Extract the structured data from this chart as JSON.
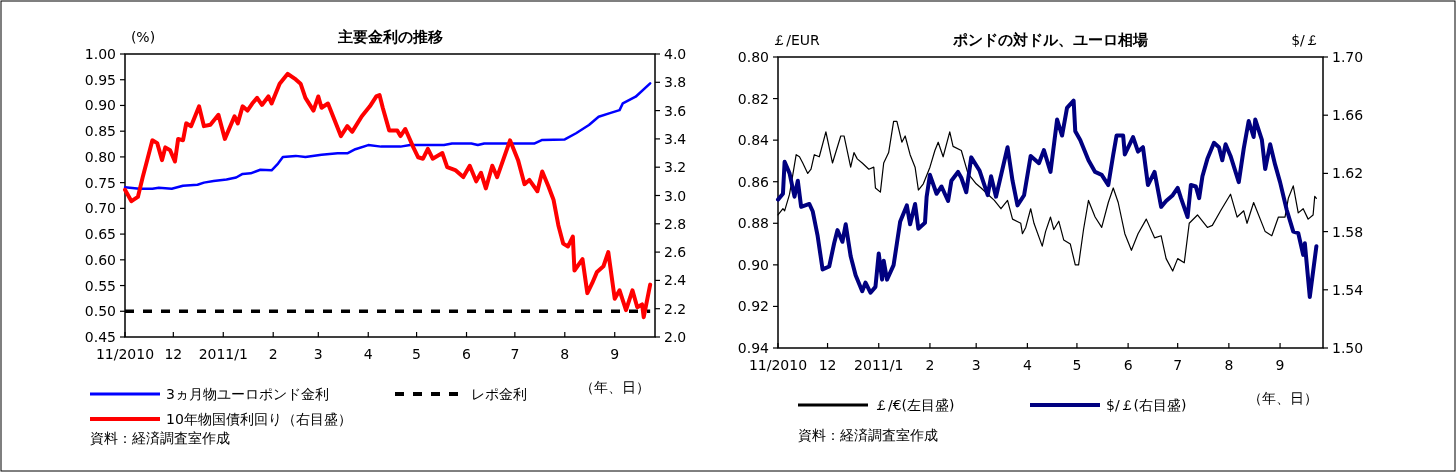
{
  "chart_data": [
    {
      "type": "line",
      "title": "主要金利の推移",
      "ylabel": "(%)",
      "xlabel": "（年、日）",
      "legend": "bottom",
      "grid": false,
      "xlim": [
        "2010-11-01",
        "2011-09-26"
      ],
      "xticks": [
        {
          "value": "2010-11-01",
          "label": "11/2010"
        },
        {
          "value": "2010-12-01",
          "label": "12"
        },
        {
          "value": "2011-01-01",
          "label": "2011/1"
        },
        {
          "value": "2011-02-01",
          "label": "2"
        },
        {
          "value": "2011-03-01",
          "label": "3"
        },
        {
          "value": "2011-04-01",
          "label": "4"
        },
        {
          "value": "2011-05-01",
          "label": "5"
        },
        {
          "value": "2011-06-01",
          "label": "6"
        },
        {
          "value": "2011-07-01",
          "label": "7"
        },
        {
          "value": "2011-08-01",
          "label": "8"
        },
        {
          "value": "2011-09-01",
          "label": "9"
        }
      ],
      "ylim": [
        0.45,
        1.0
      ],
      "yticks": [
        {
          "value": 0.45,
          "label": "0.45"
        },
        {
          "value": 0.5,
          "label": "0.50"
        },
        {
          "value": 0.55,
          "label": "0.55"
        },
        {
          "value": 0.6,
          "label": "0.60"
        },
        {
          "value": 0.65,
          "label": "0.65"
        },
        {
          "value": 0.7,
          "label": "0.70"
        },
        {
          "value": 0.75,
          "label": "0.75"
        },
        {
          "value": 0.8,
          "label": "0.80"
        },
        {
          "value": 0.85,
          "label": "0.85"
        },
        {
          "value": 0.9,
          "label": "0.90"
        },
        {
          "value": 0.95,
          "label": "0.95"
        },
        {
          "value": 1.0,
          "label": "1.00"
        }
      ],
      "y2lim": [
        2.0,
        4.0
      ],
      "y2ticks": [
        {
          "value": 2.0,
          "label": "2.0"
        },
        {
          "value": 2.2,
          "label": "2.2"
        },
        {
          "value": 2.4,
          "label": "2.4"
        },
        {
          "value": 2.6,
          "label": "2.6"
        },
        {
          "value": 2.8,
          "label": "2.8"
        },
        {
          "value": 3.0,
          "label": "3.0"
        },
        {
          "value": 3.2,
          "label": "3.2"
        },
        {
          "value": 3.4,
          "label": "3.4"
        },
        {
          "value": 3.6,
          "label": "3.6"
        },
        {
          "value": 3.8,
          "label": "3.8"
        },
        {
          "value": 4.0,
          "label": "4.0"
        }
      ],
      "series": [
        {
          "name": "3ヵ月物ユーロポンド金利",
          "color": "#0000ff",
          "x": [
            "2010-11-01",
            "2010-11-10",
            "2010-11-18",
            "2010-11-22",
            "2010-11-30",
            "2010-12-07",
            "2010-12-16",
            "2010-12-20",
            "2010-12-26",
            "2011-01-03",
            "2011-01-09",
            "2011-01-13",
            "2011-01-18",
            "2011-01-24",
            "2011-01-31",
            "2011-02-04",
            "2011-02-07",
            "2011-02-15",
            "2011-02-21",
            "2011-03-03",
            "2011-03-13",
            "2011-03-19",
            "2011-03-24",
            "2011-04-01",
            "2011-04-09",
            "2011-04-21",
            "2011-04-27",
            "2011-05-18",
            "2011-05-23",
            "2011-06-04",
            "2011-06-08",
            "2011-06-12",
            "2011-07-13",
            "2011-07-18",
            "2011-08-01",
            "2011-08-08",
            "2011-08-16",
            "2011-08-22",
            "2011-08-29",
            "2011-09-04",
            "2011-09-06",
            "2011-09-14",
            "2011-09-23"
          ],
          "values": [
            0.741,
            0.738,
            0.738,
            0.74,
            0.738,
            0.744,
            0.746,
            0.75,
            0.753,
            0.756,
            0.76,
            0.767,
            0.768,
            0.775,
            0.774,
            0.787,
            0.8,
            0.802,
            0.8,
            0.804,
            0.807,
            0.807,
            0.815,
            0.823,
            0.82,
            0.82,
            0.823,
            0.823,
            0.826,
            0.826,
            0.823,
            0.826,
            0.826,
            0.833,
            0.834,
            0.846,
            0.862,
            0.878,
            0.885,
            0.891,
            0.904,
            0.917,
            0.943
          ]
        },
        {
          "name": "レポ金利",
          "color": "#000000",
          "line_style": "dashed",
          "x": [
            "2010-11-01",
            "2011-09-23"
          ],
          "values": [
            0.5,
            0.5
          ]
        },
        {
          "name": "10年物国債利回り（右目盛）",
          "color": "#ff0000",
          "axis": "y2",
          "x": [
            "2010-11-01",
            "2010-11-05",
            "2010-11-09",
            "2010-11-12",
            "2010-11-15",
            "2010-11-18",
            "2010-11-21",
            "2010-11-24",
            "2010-11-26",
            "2010-11-29",
            "2010-12-02",
            "2010-12-04",
            "2010-12-07",
            "2010-12-09",
            "2010-12-12",
            "2010-12-17",
            "2010-12-20",
            "2010-12-24",
            "2010-12-29",
            "2011-01-02",
            "2011-01-08",
            "2011-01-10",
            "2011-01-13",
            "2011-01-16",
            "2011-01-19",
            "2011-01-22",
            "2011-01-25",
            "2011-01-29",
            "2011-01-31",
            "2011-02-05",
            "2011-02-10",
            "2011-02-15",
            "2011-02-18",
            "2011-02-21",
            "2011-02-26",
            "2011-03-01",
            "2011-03-03",
            "2011-03-07",
            "2011-03-15",
            "2011-03-19",
            "2011-03-22",
            "2011-03-28",
            "2011-04-02",
            "2011-04-06",
            "2011-04-08",
            "2011-04-10",
            "2011-04-14",
            "2011-04-19",
            "2011-04-21",
            "2011-04-24",
            "2011-04-29",
            "2011-05-02",
            "2011-05-05",
            "2011-05-08",
            "2011-05-11",
            "2011-05-17",
            "2011-05-20",
            "2011-05-25",
            "2011-05-30",
            "2011-06-03",
            "2011-06-07",
            "2011-06-10",
            "2011-06-13",
            "2011-06-17",
            "2011-06-20",
            "2011-06-28",
            "2011-07-03",
            "2011-07-07",
            "2011-07-10",
            "2011-07-15",
            "2011-07-18",
            "2011-07-22",
            "2011-07-25",
            "2011-07-28",
            "2011-07-31",
            "2011-08-03",
            "2011-08-06",
            "2011-08-07",
            "2011-08-12",
            "2011-08-15",
            "2011-08-18",
            "2011-08-21",
            "2011-08-25",
            "2011-08-28",
            "2011-09-01",
            "2011-09-04",
            "2011-09-08",
            "2011-09-12",
            "2011-09-15",
            "2011-09-18",
            "2011-09-19",
            "2011-09-23"
          ],
          "values": [
            3.04,
            2.96,
            2.99,
            3.13,
            3.26,
            3.39,
            3.37,
            3.25,
            3.34,
            3.32,
            3.24,
            3.4,
            3.39,
            3.51,
            3.49,
            3.63,
            3.49,
            3.5,
            3.57,
            3.4,
            3.56,
            3.51,
            3.63,
            3.6,
            3.65,
            3.69,
            3.64,
            3.7,
            3.65,
            3.79,
            3.86,
            3.82,
            3.79,
            3.69,
            3.6,
            3.7,
            3.62,
            3.65,
            3.42,
            3.49,
            3.45,
            3.56,
            3.63,
            3.7,
            3.71,
            3.62,
            3.46,
            3.46,
            3.42,
            3.47,
            3.34,
            3.27,
            3.26,
            3.33,
            3.26,
            3.3,
            3.2,
            3.18,
            3.13,
            3.21,
            3.1,
            3.16,
            3.05,
            3.21,
            3.13,
            3.39,
            3.25,
            3.08,
            3.11,
            3.03,
            3.17,
            3.06,
            2.97,
            2.79,
            2.66,
            2.64,
            2.71,
            2.47,
            2.55,
            2.31,
            2.38,
            2.46,
            2.5,
            2.6,
            2.27,
            2.33,
            2.19,
            2.33,
            2.21,
            2.23,
            2.14,
            2.37
          ]
        }
      ],
      "annotations": [
        "資料：経済調査室作成"
      ]
    },
    {
      "type": "line",
      "title": "ポンドの対ドル、ユーロ相場",
      "ylabel": "￡/EUR",
      "y2label": "$/￡",
      "xlabel": "（年、日）",
      "legend": "bottom",
      "grid": false,
      "xlim": [
        "2010-11-01",
        "2011-09-27"
      ],
      "xticks": [
        {
          "value": "2010-11-01",
          "label": "11/2010"
        },
        {
          "value": "2010-12-01",
          "label": "12"
        },
        {
          "value": "2011-01-01",
          "label": "2011/1"
        },
        {
          "value": "2011-02-01",
          "label": "2"
        },
        {
          "value": "2011-03-01",
          "label": "3"
        },
        {
          "value": "2011-04-01",
          "label": "4"
        },
        {
          "value": "2011-05-01",
          "label": "5"
        },
        {
          "value": "2011-06-01",
          "label": "6"
        },
        {
          "value": "2011-07-01",
          "label": "7"
        },
        {
          "value": "2011-08-01",
          "label": "8"
        },
        {
          "value": "2011-09-01",
          "label": "9"
        }
      ],
      "ylim": [
        0.94,
        0.8
      ],
      "yticks": [
        {
          "value": 0.8,
          "label": "0.80"
        },
        {
          "value": 0.82,
          "label": "0.82"
        },
        {
          "value": 0.84,
          "label": "0.84"
        },
        {
          "value": 0.86,
          "label": "0.86"
        },
        {
          "value": 0.88,
          "label": "0.88"
        },
        {
          "value": 0.9,
          "label": "0.90"
        },
        {
          "value": 0.92,
          "label": "0.92"
        },
        {
          "value": 0.94,
          "label": "0.94"
        }
      ],
      "y2lim": [
        1.5,
        1.7
      ],
      "y2ticks": [
        {
          "value": 1.5,
          "label": "1.50"
        },
        {
          "value": 1.54,
          "label": "1.54"
        },
        {
          "value": 1.58,
          "label": "1.58"
        },
        {
          "value": 1.62,
          "label": "1.62"
        },
        {
          "value": 1.66,
          "label": "1.66"
        },
        {
          "value": 1.7,
          "label": "1.70"
        }
      ],
      "series": [
        {
          "name": "￡/€(左目盛)",
          "color": "#000000",
          "x": [
            "2010-11-01",
            "2010-11-04",
            "2010-11-05",
            "2010-11-08",
            "2010-11-12",
            "2010-11-14",
            "2010-11-16",
            "2010-11-19",
            "2010-11-21",
            "2010-11-23",
            "2010-11-26",
            "2010-11-30",
            "2010-12-04",
            "2010-12-09",
            "2010-12-11",
            "2010-12-15",
            "2010-12-17",
            "2010-12-19",
            "2010-12-22",
            "2010-12-26",
            "2010-12-29",
            "2010-12-30",
            "2011-01-02",
            "2011-01-04",
            "2011-01-07",
            "2011-01-10",
            "2011-01-12",
            "2011-01-15",
            "2011-01-17",
            "2011-01-20",
            "2011-01-23",
            "2011-01-25",
            "2011-01-28",
            "2011-02-01",
            "2011-02-04",
            "2011-02-06",
            "2011-02-09",
            "2011-02-13",
            "2011-02-15",
            "2011-02-20",
            "2011-02-24",
            "2011-03-01",
            "2011-03-04",
            "2011-03-08",
            "2011-03-12",
            "2011-03-16",
            "2011-03-20",
            "2011-03-23",
            "2011-03-28",
            "2011-03-29",
            "2011-03-31",
            "2011-04-03",
            "2011-04-05",
            "2011-04-10",
            "2011-04-12",
            "2011-04-15",
            "2011-04-17",
            "2011-04-20",
            "2011-04-23",
            "2011-04-27",
            "2011-04-30",
            "2011-05-02",
            "2011-05-05",
            "2011-05-08",
            "2011-05-12",
            "2011-05-16",
            "2011-05-20",
            "2011-05-23",
            "2011-05-26",
            "2011-05-30",
            "2011-06-03",
            "2011-06-07",
            "2011-06-12",
            "2011-06-17",
            "2011-06-21",
            "2011-06-24",
            "2011-06-28",
            "2011-07-01",
            "2011-07-05",
            "2011-07-08",
            "2011-07-13",
            "2011-07-19",
            "2011-07-22",
            "2011-07-27",
            "2011-08-02",
            "2011-08-06",
            "2011-08-10",
            "2011-08-12",
            "2011-08-16",
            "2011-08-23",
            "2011-08-27",
            "2011-08-31",
            "2011-09-04",
            "2011-09-06",
            "2011-09-09",
            "2011-09-12",
            "2011-09-15",
            "2011-09-18",
            "2011-09-21",
            "2011-09-22",
            "2011-09-23"
          ],
          "values": [
            0.876,
            0.873,
            0.874,
            0.866,
            0.847,
            0.848,
            0.851,
            0.856,
            0.854,
            0.847,
            0.848,
            0.836,
            0.851,
            0.838,
            0.838,
            0.853,
            0.846,
            0.849,
            0.851,
            0.854,
            0.853,
            0.863,
            0.865,
            0.851,
            0.846,
            0.831,
            0.831,
            0.841,
            0.838,
            0.847,
            0.853,
            0.864,
            0.861,
            0.853,
            0.845,
            0.841,
            0.848,
            0.836,
            0.843,
            0.845,
            0.856,
            0.861,
            0.863,
            0.866,
            0.869,
            0.873,
            0.869,
            0.878,
            0.88,
            0.885,
            0.882,
            0.873,
            0.88,
            0.891,
            0.884,
            0.877,
            0.883,
            0.879,
            0.888,
            0.89,
            0.9,
            0.9,
            0.883,
            0.869,
            0.877,
            0.882,
            0.87,
            0.863,
            0.87,
            0.885,
            0.893,
            0.885,
            0.878,
            0.887,
            0.886,
            0.897,
            0.903,
            0.897,
            0.899,
            0.88,
            0.876,
            0.882,
            0.881,
            0.874,
            0.866,
            0.877,
            0.874,
            0.88,
            0.87,
            0.884,
            0.886,
            0.877,
            0.877,
            0.868,
            0.862,
            0.875,
            0.873,
            0.878,
            0.876,
            0.867,
            0.868
          ]
        },
        {
          "name": "$/￡(右目盛)",
          "color": "#000080",
          "axis": "y2",
          "x": [
            "2010-11-01",
            "2010-11-04",
            "2010-11-05",
            "2010-11-08",
            "2010-11-11",
            "2010-11-13",
            "2010-11-15",
            "2010-11-20",
            "2010-11-22",
            "2010-11-25",
            "2010-11-28",
            "2010-12-02",
            "2010-12-05",
            "2010-12-07",
            "2010-12-10",
            "2010-12-12",
            "2010-12-15",
            "2010-12-18",
            "2010-12-22",
            "2010-12-24",
            "2010-12-27",
            "2010-12-30",
            "2011-01-01",
            "2011-01-03",
            "2011-01-04",
            "2011-01-06",
            "2011-01-10",
            "2011-01-12",
            "2011-01-14",
            "2011-01-18",
            "2011-01-20",
            "2011-01-23",
            "2011-01-25",
            "2011-01-29",
            "2011-01-30",
            "2011-02-01",
            "2011-02-05",
            "2011-02-08",
            "2011-02-12",
            "2011-02-14",
            "2011-02-18",
            "2011-02-20",
            "2011-02-23",
            "2011-02-26",
            "2011-03-03",
            "2011-03-08",
            "2011-03-10",
            "2011-03-13",
            "2011-03-20",
            "2011-03-23",
            "2011-03-26",
            "2011-03-30",
            "2011-04-03",
            "2011-04-08",
            "2011-04-11",
            "2011-04-15",
            "2011-04-19",
            "2011-04-22",
            "2011-04-25",
            "2011-04-29",
            "2011-04-30",
            "2011-05-03",
            "2011-05-08",
            "2011-05-12",
            "2011-05-16",
            "2011-05-20",
            "2011-05-23",
            "2011-05-25",
            "2011-05-29",
            "2011-05-30",
            "2011-06-04",
            "2011-06-07",
            "2011-06-10",
            "2011-06-13",
            "2011-06-17",
            "2011-06-21",
            "2011-06-24",
            "2011-06-28",
            "2011-07-01",
            "2011-07-03",
            "2011-07-07",
            "2011-07-09",
            "2011-07-12",
            "2011-07-14",
            "2011-07-16",
            "2011-07-19",
            "2011-07-23",
            "2011-07-26",
            "2011-07-28",
            "2011-07-30",
            "2011-08-02",
            "2011-08-07",
            "2011-08-10",
            "2011-08-13",
            "2011-08-16",
            "2011-08-17",
            "2011-08-21",
            "2011-08-23",
            "2011-08-26",
            "2011-08-29",
            "2011-09-01",
            "2011-09-05",
            "2011-09-09",
            "2011-09-12",
            "2011-09-15",
            "2011-09-16",
            "2011-09-19",
            "2011-09-23"
          ],
          "values": [
            1.602,
            1.606,
            1.628,
            1.62,
            1.604,
            1.615,
            1.597,
            1.599,
            1.594,
            1.577,
            1.554,
            1.556,
            1.572,
            1.581,
            1.573,
            1.585,
            1.563,
            1.55,
            1.539,
            1.545,
            1.538,
            1.542,
            1.565,
            1.547,
            1.56,
            1.547,
            1.557,
            1.572,
            1.587,
            1.598,
            1.585,
            1.599,
            1.582,
            1.586,
            1.604,
            1.619,
            1.606,
            1.611,
            1.601,
            1.615,
            1.621,
            1.617,
            1.607,
            1.631,
            1.622,
            1.605,
            1.618,
            1.604,
            1.638,
            1.615,
            1.598,
            1.605,
            1.632,
            1.627,
            1.636,
            1.621,
            1.657,
            1.646,
            1.665,
            1.67,
            1.649,
            1.643,
            1.629,
            1.621,
            1.619,
            1.612,
            1.633,
            1.646,
            1.646,
            1.633,
            1.645,
            1.635,
            1.638,
            1.612,
            1.621,
            1.597,
            1.601,
            1.605,
            1.61,
            1.603,
            1.59,
            1.612,
            1.611,
            1.603,
            1.618,
            1.63,
            1.641,
            1.638,
            1.629,
            1.64,
            1.632,
            1.614,
            1.637,
            1.656,
            1.645,
            1.657,
            1.643,
            1.623,
            1.64,
            1.626,
            1.614,
            1.595,
            1.58,
            1.579,
            1.564,
            1.572,
            1.535,
            1.57
          ]
        }
      ],
      "annotations": [
        "資料：経済調査室作成"
      ]
    }
  ]
}
